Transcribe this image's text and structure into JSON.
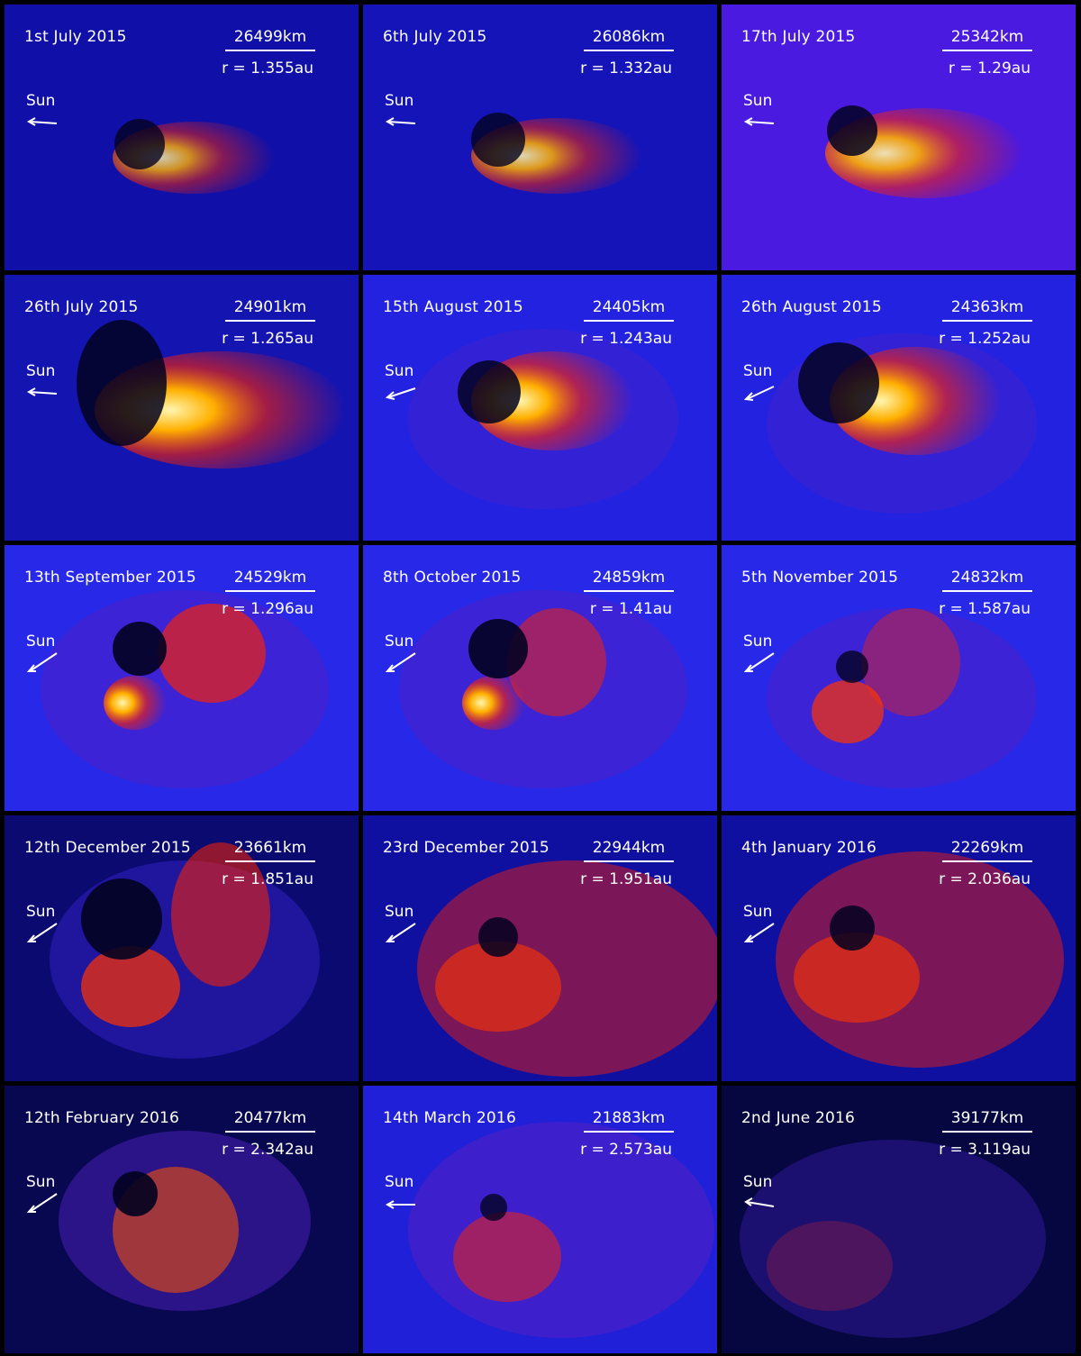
{
  "sun_label": "Sun",
  "colors": {
    "background": "#1a1ad0",
    "dark_background": "#05052a",
    "tail_red": "#ff2200",
    "tail_yellow": "#ffe840",
    "text": "#ffffff"
  },
  "panels": [
    {
      "date": "1st July 2015",
      "scale": "26499km",
      "distance": "r = 1.355au"
    },
    {
      "date": "6th July 2015",
      "scale": "26086km",
      "distance": "r = 1.332au"
    },
    {
      "date": "17th July 2015",
      "scale": "25342km",
      "distance": "r = 1.29au"
    },
    {
      "date": "26th July 2015",
      "scale": "24901km",
      "distance": "r = 1.265au"
    },
    {
      "date": "15th August 2015",
      "scale": "24405km",
      "distance": "r = 1.243au"
    },
    {
      "date": "26th August 2015",
      "scale": "24363km",
      "distance": "r = 1.252au"
    },
    {
      "date": "13th September 2015",
      "scale": "24529km",
      "distance": "r = 1.296au"
    },
    {
      "date": "8th October 2015",
      "scale": "24859km",
      "distance": "r = 1.41au"
    },
    {
      "date": "5th November 2015",
      "scale": "24832km",
      "distance": "r = 1.587au"
    },
    {
      "date": "12th December 2015",
      "scale": "23661km",
      "distance": "r = 1.851au"
    },
    {
      "date": "23rd December 2015",
      "scale": "22944km",
      "distance": "r = 1.951au"
    },
    {
      "date": "4th January 2016",
      "scale": "22269km",
      "distance": "r = 2.036au"
    },
    {
      "date": "12th February 2016",
      "scale": "20477km",
      "distance": "r = 2.342au"
    },
    {
      "date": "14th March 2016",
      "scale": "21883km",
      "distance": "r = 2.573au"
    },
    {
      "date": "2nd June 2016",
      "scale": "39177km",
      "distance": "r = 3.119au"
    }
  ]
}
